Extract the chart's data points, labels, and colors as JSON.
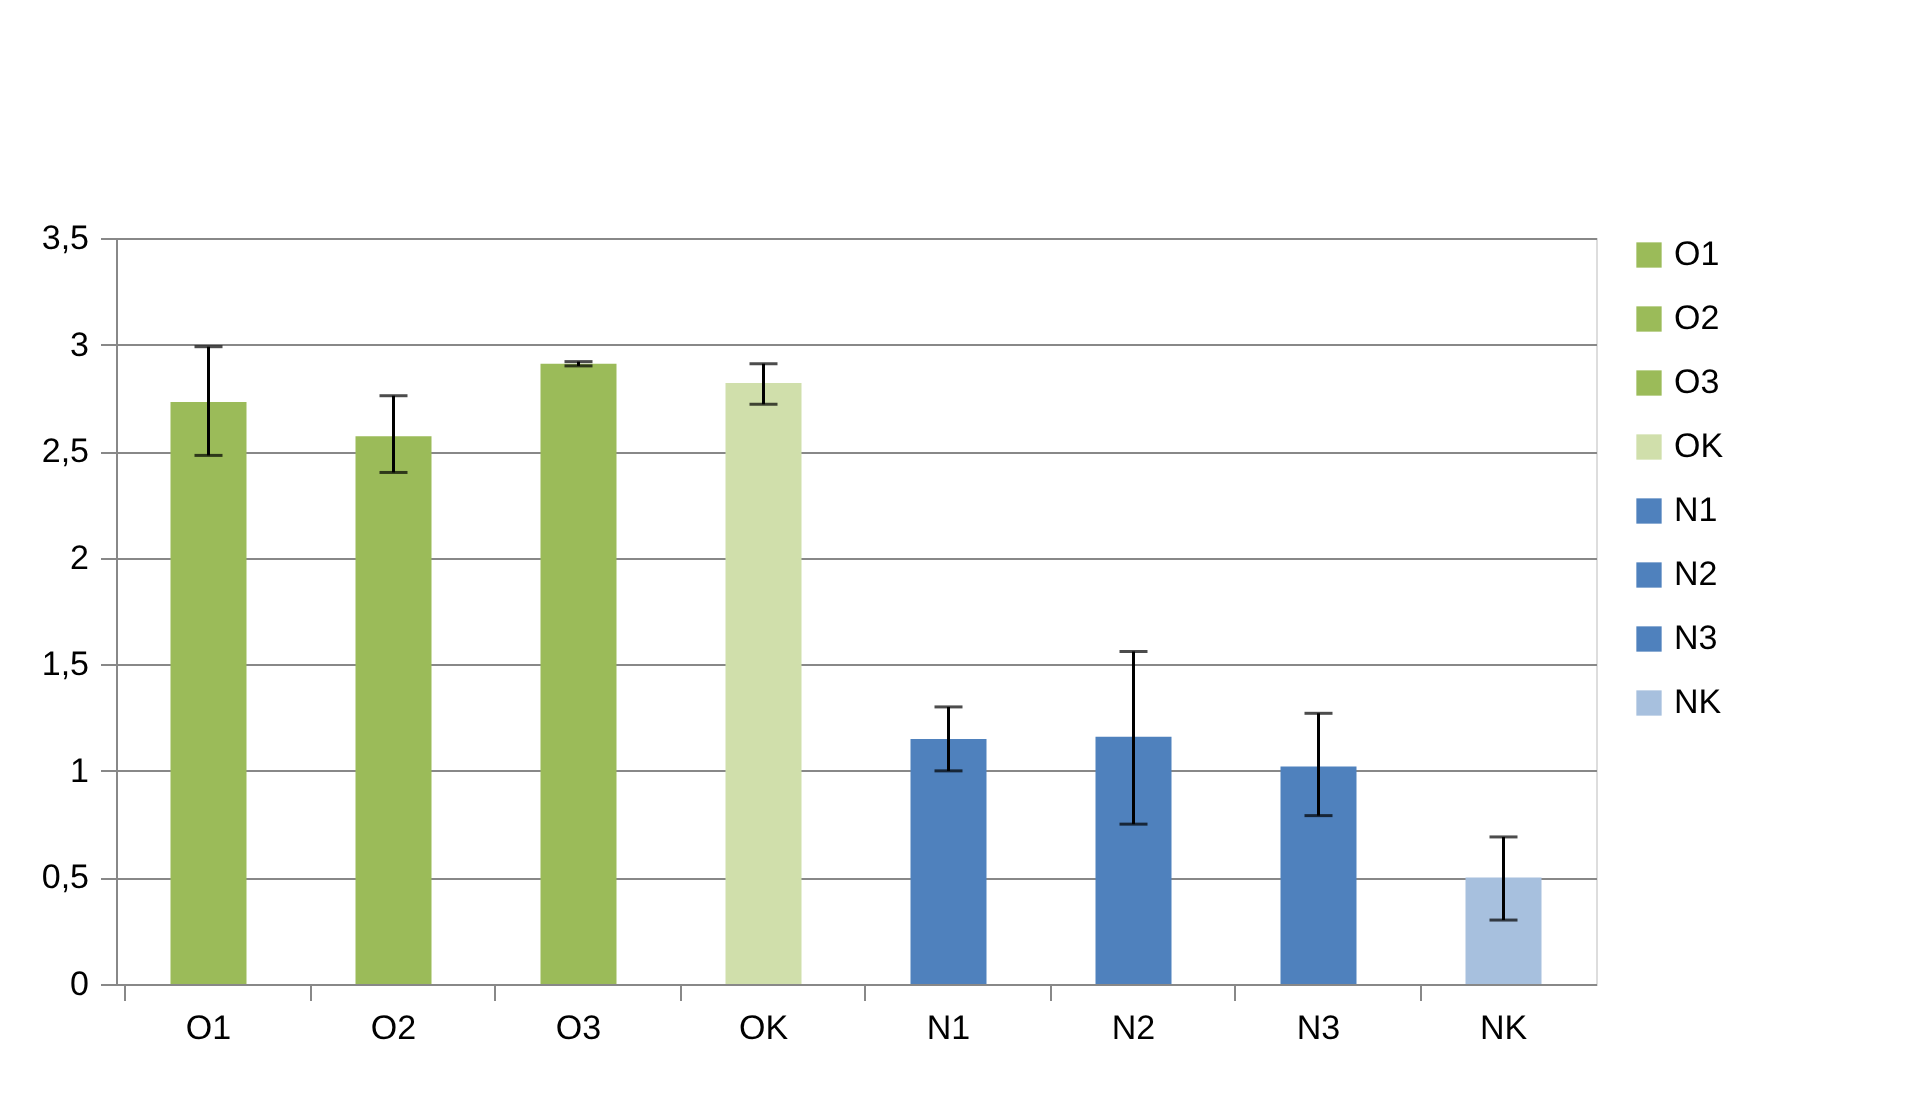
{
  "chart_data": {
    "type": "bar",
    "categories": [
      "O1",
      "O2",
      "O3",
      "OK",
      "N1",
      "N2",
      "N3",
      "NK"
    ],
    "series": [
      {
        "name": "O1",
        "color": "#9bbb59",
        "values": [
          2.73,
          null,
          null,
          null,
          null,
          null,
          null,
          null
        ],
        "errors": [
          [
            2.48,
            2.99
          ],
          null,
          null,
          null,
          null,
          null,
          null,
          null
        ]
      },
      {
        "name": "O2",
        "color": "#9bbb59",
        "values": [
          null,
          2.57,
          null,
          null,
          null,
          null,
          null,
          null
        ],
        "errors": [
          null,
          [
            2.4,
            2.76
          ],
          null,
          null,
          null,
          null,
          null,
          null
        ]
      },
      {
        "name": "O3",
        "color": "#9bbb59",
        "values": [
          null,
          null,
          2.91,
          null,
          null,
          null,
          null,
          null
        ],
        "errors": [
          null,
          null,
          [
            2.9,
            2.92
          ],
          null,
          null,
          null,
          null,
          null
        ]
      },
      {
        "name": "OK",
        "color": "#d0dfab",
        "values": [
          null,
          null,
          null,
          2.82,
          null,
          null,
          null,
          null
        ],
        "errors": [
          null,
          null,
          null,
          [
            2.72,
            2.91
          ],
          null,
          null,
          null,
          null
        ]
      },
      {
        "name": "N1",
        "color": "#4f81bd",
        "values": [
          null,
          null,
          null,
          null,
          1.15,
          null,
          null,
          null
        ],
        "errors": [
          null,
          null,
          null,
          null,
          [
            1.0,
            1.3
          ],
          null,
          null,
          null
        ]
      },
      {
        "name": "N2",
        "color": "#4f81bd",
        "values": [
          null,
          null,
          null,
          null,
          null,
          1.16,
          null,
          null
        ],
        "errors": [
          null,
          null,
          null,
          null,
          null,
          [
            0.75,
            1.56
          ],
          null,
          null
        ]
      },
      {
        "name": "N3",
        "color": "#4f81bd",
        "values": [
          null,
          null,
          null,
          null,
          null,
          null,
          1.02,
          null
        ],
        "errors": [
          null,
          null,
          null,
          null,
          null,
          null,
          [
            0.79,
            1.27
          ],
          null
        ]
      },
      {
        "name": "NK",
        "color": "#a7c0de",
        "values": [
          null,
          null,
          null,
          null,
          null,
          null,
          null,
          0.5
        ],
        "errors": [
          null,
          null,
          null,
          null,
          null,
          null,
          null,
          [
            0.3,
            0.69
          ]
        ]
      }
    ],
    "ylim": [
      0,
      3.5
    ],
    "yticks": [
      0,
      {
        "value": 0.5,
        "label": "0,5"
      },
      1,
      {
        "value": 1.5,
        "label": "1,5"
      },
      2,
      {
        "value": 2.5,
        "label": "2,5"
      },
      3,
      {
        "value": 3.5,
        "label": "3,5"
      }
    ],
    "grid": "y",
    "legend": "right"
  }
}
